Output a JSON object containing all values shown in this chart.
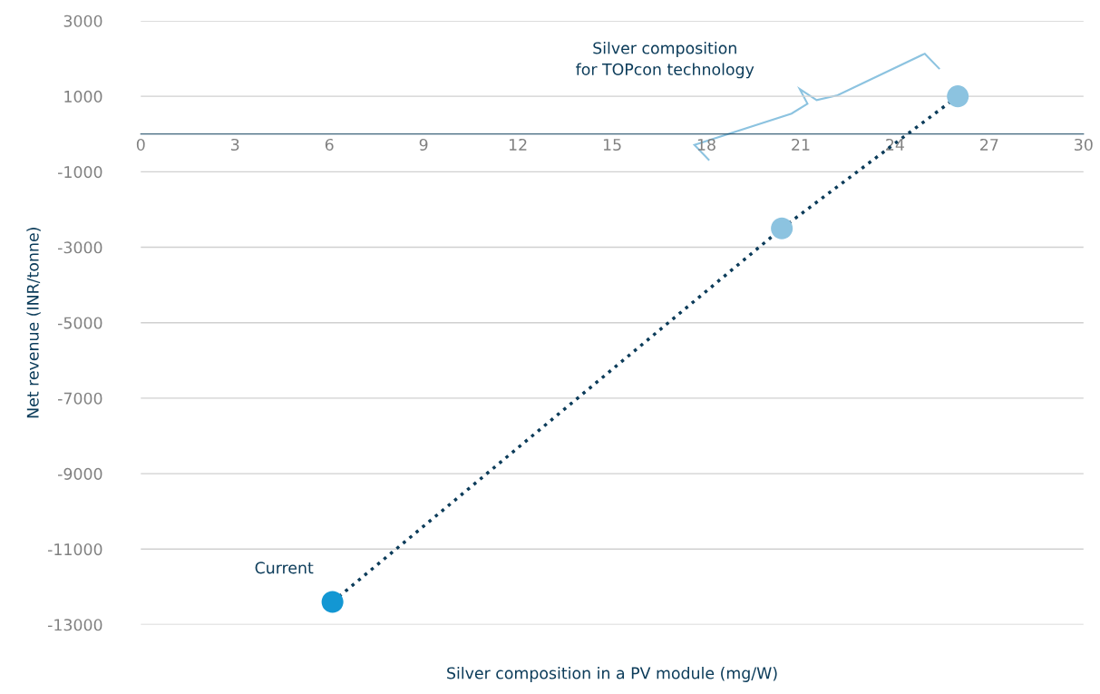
{
  "chart_data": {
    "type": "scatter",
    "xlabel": "Silver composition in a PV module (mg/W)",
    "ylabel": "Net revenue (INR/tonne)",
    "xlim": [
      0,
      30
    ],
    "xticks": [
      0,
      3,
      6,
      9,
      12,
      15,
      18,
      21,
      24,
      27,
      30
    ],
    "ylim": [
      -13000,
      3000
    ],
    "yticks": [
      3000,
      1000,
      -1000,
      -3000,
      -5000,
      -7000,
      -9000,
      -11000,
      -13000
    ],
    "grid": "y",
    "legend": false,
    "series": [
      {
        "type": "line",
        "x": [
          6.1,
          20.4,
          26.0
        ],
        "values": [
          -12400,
          -2500,
          1000
        ],
        "color": "#0c3c5a",
        "line_style": "dotted"
      },
      {
        "x": [
          6.1,
          20.4,
          26.0
        ],
        "values": [
          -12400,
          -2500,
          1000
        ],
        "colors": [
          "#1397d3",
          "#8cc3e0",
          "#8cc3e0"
        ],
        "marker": "circle"
      }
    ],
    "annotations": [
      {
        "text": "Current",
        "x": 6.1,
        "y": -12400
      },
      "Silver composition\nfor TOPcon technology"
    ]
  }
}
